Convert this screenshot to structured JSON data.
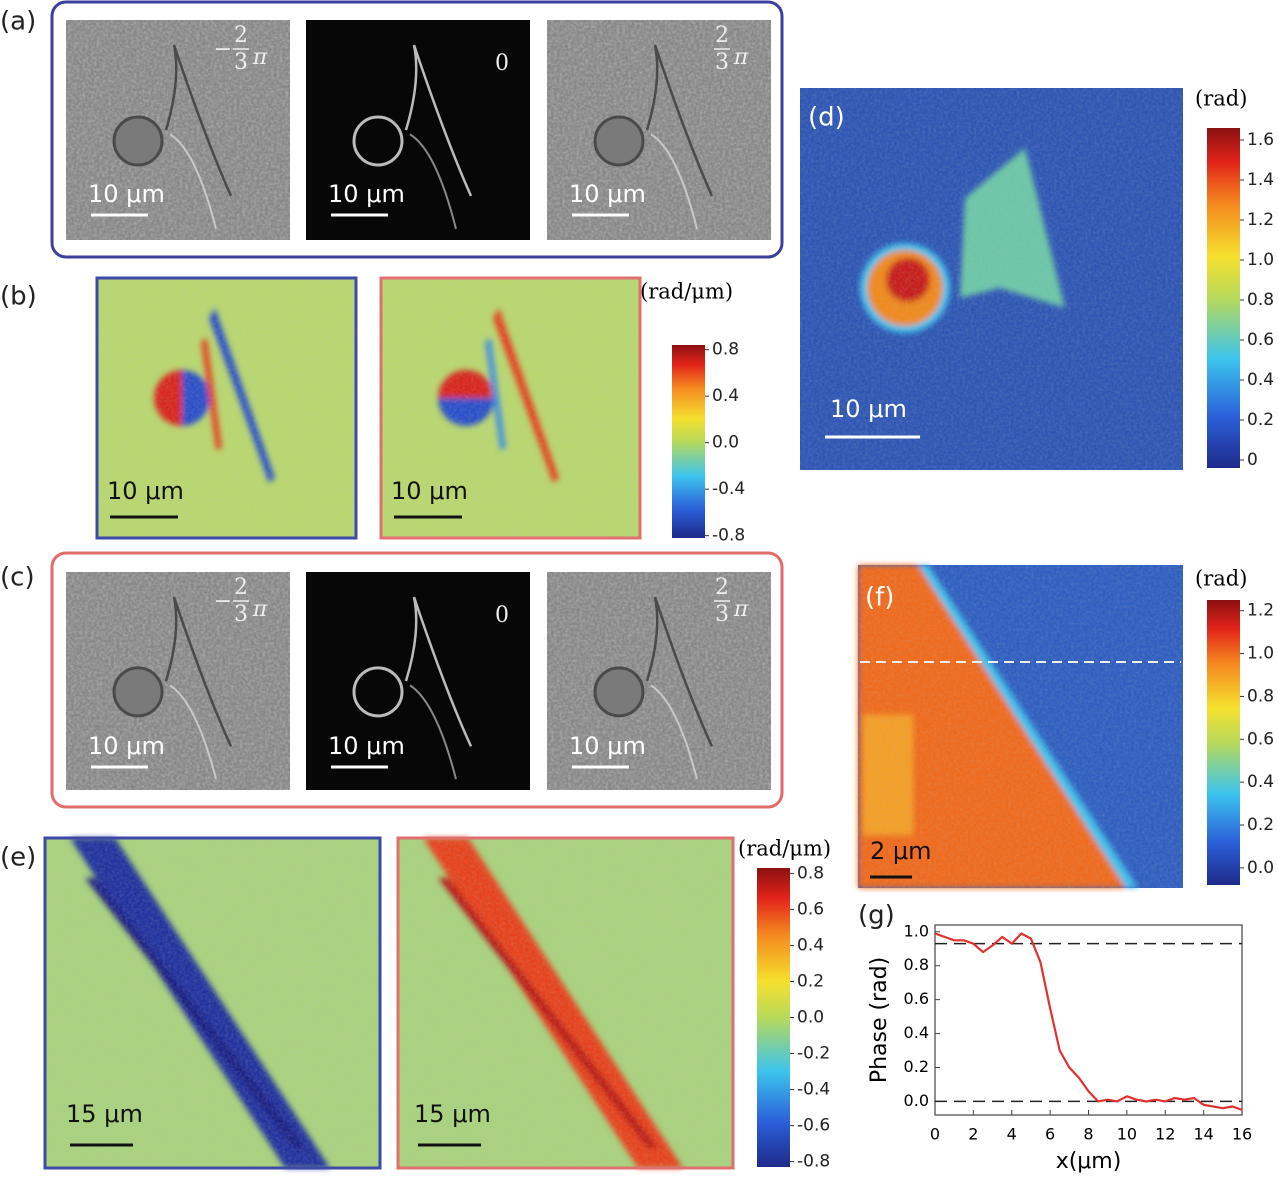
{
  "panel_labels": [
    "(a)",
    "(b)",
    "(c)",
    "(d)",
    "(e)",
    "(f)",
    "(g)"
  ],
  "a": {
    "phase_labels": [
      {
        "sign": "−",
        "numerator": "2",
        "denominator": "3",
        "symbol": "π"
      },
      {
        "text": "0"
      },
      {
        "numerator": "2",
        "denominator": "3",
        "symbol": "π"
      }
    ],
    "scale_bars": [
      "10 μm",
      "10 μm",
      "10 μm"
    ]
  },
  "b": {
    "scale_bars": [
      "10 μm",
      "10 μm"
    ],
    "colorbar": {
      "title": "(rad/μm)",
      "lim": [
        -0.82,
        0.84
      ],
      "ticks": [
        0.8,
        0.4,
        {
          "value": 0,
          "label": "0.0"
        },
        -0.4,
        -0.8
      ]
    }
  },
  "c": {
    "phase_labels": [
      {
        "sign": "−",
        "numerator": "2",
        "denominator": "3",
        "symbol": "π"
      },
      {
        "text": "0"
      },
      {
        "numerator": "2",
        "denominator": "3",
        "symbol": "π"
      }
    ],
    "scale_bars": [
      "10 μm",
      "10 μm",
      "10 μm"
    ]
  },
  "d": {
    "scale_bar": "10 μm",
    "colorbar": {
      "title": "(rad)",
      "lim": [
        -0.04,
        1.66
      ],
      "ticks": [
        0,
        0.2,
        0.4,
        0.6,
        0.8,
        {
          "value": 1,
          "label": "1.0"
        },
        1.2,
        1.4,
        1.6
      ]
    }
  },
  "e": {
    "scale_bars": [
      "15 μm",
      "15 μm"
    ],
    "colorbar": {
      "title": "(rad/μm)",
      "lim": [
        -0.83,
        0.83
      ],
      "ticks": [
        0.8,
        0.6,
        0.4,
        0.2,
        {
          "value": 0,
          "label": "0.0"
        },
        -0.2,
        -0.4,
        -0.6,
        -0.8
      ]
    }
  },
  "f": {
    "scale_bar": "2 μm",
    "colorbar": {
      "title": "(rad)",
      "lim": [
        -0.08,
        1.25
      ],
      "ticks": [
        {
          "value": 0,
          "label": "0.0"
        },
        0.2,
        0.4,
        0.6,
        0.8,
        {
          "value": 1,
          "label": "1.0"
        },
        1.2
      ]
    }
  },
  "chart_data": {
    "type": "line",
    "x_label": "x(μm)",
    "y_label": "Phase (rad)",
    "xlim": [
      0,
      16
    ],
    "ylim": [
      -0.08,
      1.04
    ],
    "xticks": [
      0,
      2,
      4,
      6,
      8,
      10,
      12,
      14,
      16
    ],
    "yticks": [
      {
        "value": 0,
        "label": "0.0"
      },
      0.2,
      0.4,
      0.6,
      0.8,
      {
        "value": 1,
        "label": "1.0"
      }
    ],
    "x": [
      0,
      0.5,
      1,
      1.5,
      2,
      2.5,
      3,
      3.5,
      4,
      4.5,
      5,
      5.5,
      6,
      6.5,
      7,
      7.5,
      8,
      8.5,
      9,
      9.5,
      10,
      10.5,
      11,
      11.5,
      12,
      12.5,
      13,
      13.5,
      14,
      14.5,
      15,
      15.5,
      16
    ],
    "values": [
      0.99,
      0.97,
      0.95,
      0.95,
      0.93,
      0.88,
      0.92,
      0.97,
      0.93,
      0.99,
      0.96,
      0.82,
      0.55,
      0.3,
      0.2,
      0.14,
      0.06,
      0.0,
      0.01,
      0.0,
      0.03,
      0.01,
      0.0,
      0.01,
      0.0,
      0.02,
      0.01,
      0.02,
      -0.02,
      -0.03,
      -0.04,
      -0.03,
      -0.05
    ],
    "color": "#e03030",
    "hlines": [
      0.93,
      0
    ]
  }
}
